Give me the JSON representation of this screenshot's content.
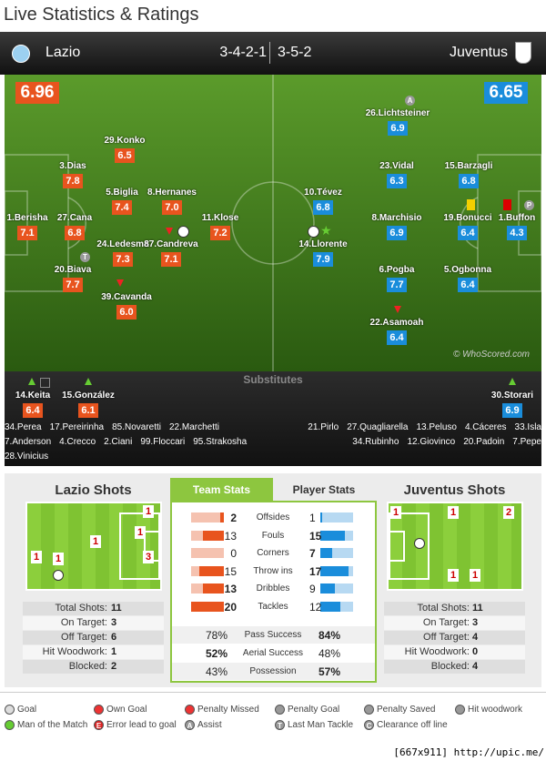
{
  "title": "Live Statistics & Ratings",
  "header": {
    "home": "Lazio",
    "away": "Juventus",
    "home_formation": "3-4-2-1",
    "away_formation": "3-5-2"
  },
  "pitch": {
    "home_rating": "6.96",
    "away_rating": "6.65",
    "copyright": "© WhoScored.com",
    "home_players": [
      {
        "name": "1.Berisha",
        "rating": "7.1"
      },
      {
        "name": "3.Dias",
        "rating": "7.8"
      },
      {
        "name": "27.Cana",
        "rating": "6.8"
      },
      {
        "name": "20.Biava",
        "rating": "7.7",
        "icon": "T"
      },
      {
        "name": "29.Konko",
        "rating": "6.5"
      },
      {
        "name": "5.Biglia",
        "rating": "7.4"
      },
      {
        "name": "24.Ledesma",
        "rating": "7.3"
      },
      {
        "name": "39.Cavanda",
        "rating": "6.0"
      },
      {
        "name": "8.Hernanes",
        "rating": "7.0"
      },
      {
        "name": "87.Candreva",
        "rating": "7.1"
      },
      {
        "name": "11.Klose",
        "rating": "7.2"
      }
    ],
    "away_players": [
      {
        "name": "26.Lichtsteiner",
        "rating": "6.9",
        "icon": "A"
      },
      {
        "name": "23.Vidal",
        "rating": "6.3"
      },
      {
        "name": "15.Barzagli",
        "rating": "6.8"
      },
      {
        "name": "10.Tévez",
        "rating": "6.8"
      },
      {
        "name": "8.Marchisio",
        "rating": "6.9"
      },
      {
        "name": "19.Bonucci",
        "rating": "6.4"
      },
      {
        "name": "1.Buffon",
        "rating": "4.3",
        "icon": "P"
      },
      {
        "name": "14.Llorente",
        "rating": "7.9"
      },
      {
        "name": "6.Pogba",
        "rating": "7.7"
      },
      {
        "name": "5.Ogbonna",
        "rating": "6.4"
      },
      {
        "name": "22.Asamoah",
        "rating": "6.4"
      }
    ]
  },
  "subs": {
    "title": "Substitutes",
    "home": [
      {
        "name": "14.Keita",
        "rating": "6.4"
      },
      {
        "name": "15.González",
        "rating": "6.1"
      }
    ],
    "away": [
      {
        "name": "30.Storari",
        "rating": "6.9"
      }
    ],
    "home_bench": [
      [
        "34.Perea",
        "17.Pereirinha",
        "85.Novaretti",
        "22.Marchetti"
      ],
      [
        "7.Anderson",
        "4.Crecco",
        "2.Ciani",
        "99.Floccari",
        "95.Strakosha"
      ],
      [
        "28.Vinicius"
      ]
    ],
    "away_bench": [
      [
        "21.Pirlo",
        "27.Quagliarella",
        "13.Peluso",
        "4.Cáceres",
        "33.Isla"
      ],
      [
        "34.Rubinho",
        "12.Giovinco",
        "20.Padoin",
        "7.Pepe"
      ]
    ]
  },
  "shots": {
    "labels": [
      "Total Shots:",
      "On Target:",
      "Off Target:",
      "Hit Woodwork:",
      "Blocked:"
    ],
    "home": {
      "title": "Lazio Shots",
      "zones": [
        1,
        1,
        1,
        1,
        1,
        3
      ],
      "values": [
        11,
        3,
        6,
        1,
        2
      ]
    },
    "away": {
      "title": "Juventus Shots",
      "zones": [
        1,
        1,
        2,
        1,
        1
      ],
      "values": [
        11,
        3,
        4,
        0,
        4
      ]
    }
  },
  "team_stats": {
    "tabs": [
      "Team Stats",
      "Player Stats"
    ],
    "rows": [
      {
        "label": "Offsides",
        "home": 2,
        "away": 1
      },
      {
        "label": "Fouls",
        "home": 13,
        "away": 15
      },
      {
        "label": "Corners",
        "home": 0,
        "away": 7
      },
      {
        "label": "Throw ins",
        "home": 15,
        "away": 17
      },
      {
        "label": "Dribbles",
        "home": 13,
        "away": 9
      },
      {
        "label": "Tackles",
        "home": 20,
        "away": 12
      }
    ],
    "pct_rows": [
      {
        "label": "Pass Success",
        "home": "78%",
        "away": "84%"
      },
      {
        "label": "Aerial Success",
        "home": "52%",
        "away": "48%"
      },
      {
        "label": "Possession",
        "home": "43%",
        "away": "57%"
      }
    ]
  },
  "legend": [
    {
      "label": "Goal"
    },
    {
      "label": "Own Goal"
    },
    {
      "label": "Penalty Missed"
    },
    {
      "label": "Penalty Goal"
    },
    {
      "label": "Penalty Saved"
    },
    {
      "label": "Hit woodwork"
    },
    {
      "label": "Man of the Match"
    },
    {
      "label": "Error lead to goal",
      "icon": "E"
    },
    {
      "label": "Assist",
      "icon": "A"
    },
    {
      "label": "Last Man Tackle",
      "icon": "T"
    },
    {
      "label": "Clearance off line",
      "icon": "C"
    }
  ],
  "footer": "[667x911] http://upic.me/"
}
